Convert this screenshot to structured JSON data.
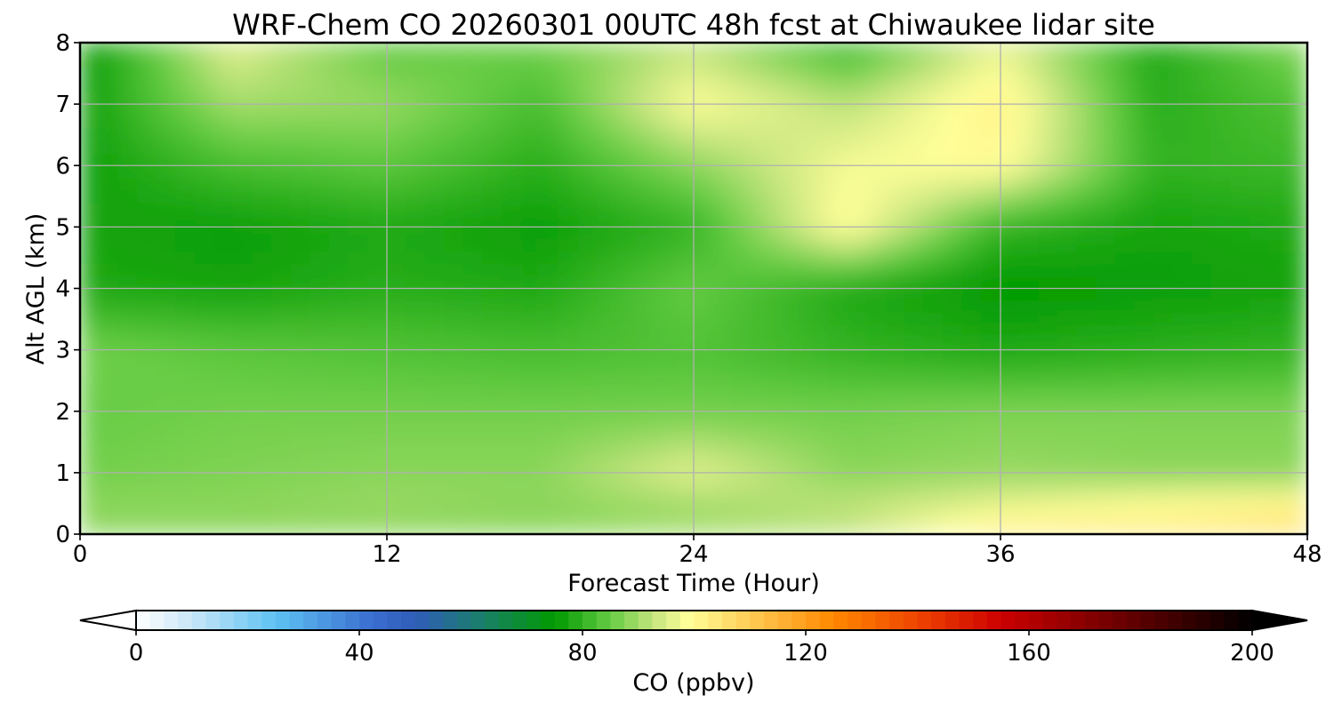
{
  "chart_data": {
    "type": "heatmap",
    "title": "WRF-Chem CO  20260301 00UTC 48h fcst at Chiwaukee lidar site",
    "xlabel": "Forecast Time (Hour)",
    "ylabel": "Alt AGL (km)",
    "xlim": [
      0,
      48
    ],
    "ylim": [
      0,
      8
    ],
    "xticks": [
      0,
      12,
      24,
      36,
      48
    ],
    "yticks": [
      0,
      1,
      2,
      3,
      4,
      5,
      6,
      7,
      8
    ],
    "grid": true,
    "x": [
      0,
      6,
      12,
      18,
      24,
      30,
      36,
      42,
      48
    ],
    "y": [
      0,
      0.5,
      1,
      2,
      3,
      4,
      5,
      6,
      7,
      8
    ],
    "z": [
      [
        88,
        88,
        88,
        88,
        90,
        92,
        104,
        104,
        106
      ],
      [
        88,
        88,
        89,
        88,
        90,
        92,
        96,
        99,
        101
      ],
      [
        86,
        87,
        88,
        88,
        96,
        88,
        89,
        88,
        88
      ],
      [
        85,
        86,
        86,
        86,
        86,
        86,
        87,
        87,
        87
      ],
      [
        86,
        84,
        83,
        82,
        83,
        80,
        78,
        79,
        80
      ],
      [
        78,
        77,
        79,
        78,
        85,
        78,
        75,
        76,
        77
      ],
      [
        77,
        76,
        78,
        76,
        80,
        100,
        80,
        77,
        78
      ],
      [
        76,
        82,
        84,
        79,
        88,
        98,
        100,
        80,
        81
      ],
      [
        76,
        90,
        89,
        82,
        99,
        92,
        102,
        79,
        83
      ],
      [
        74,
        96,
        84,
        86,
        92,
        80,
        96,
        78,
        88
      ]
    ],
    "colorbar": {
      "label": "CO  (ppbv)",
      "min": 0,
      "max": 200,
      "ticks": [
        0,
        40,
        80,
        120,
        160,
        200
      ],
      "extend": "both",
      "stops": [
        {
          "v": 0,
          "c": "#ffffff"
        },
        {
          "v": 10,
          "c": "#c8e6f8"
        },
        {
          "v": 25,
          "c": "#5ec2f2"
        },
        {
          "v": 42,
          "c": "#3a6fd0"
        },
        {
          "v": 50,
          "c": "#2f5cb8"
        },
        {
          "v": 62,
          "c": "#1a7f6a"
        },
        {
          "v": 75,
          "c": "#009900"
        },
        {
          "v": 85,
          "c": "#66cc44"
        },
        {
          "v": 93,
          "c": "#c8e680"
        },
        {
          "v": 99,
          "c": "#ffff99"
        },
        {
          "v": 110,
          "c": "#ffcc55"
        },
        {
          "v": 125,
          "c": "#ff8800"
        },
        {
          "v": 140,
          "c": "#ee4400"
        },
        {
          "v": 155,
          "c": "#cc0000"
        },
        {
          "v": 170,
          "c": "#880000"
        },
        {
          "v": 185,
          "c": "#440000"
        },
        {
          "v": 200,
          "c": "#000000"
        }
      ]
    }
  }
}
